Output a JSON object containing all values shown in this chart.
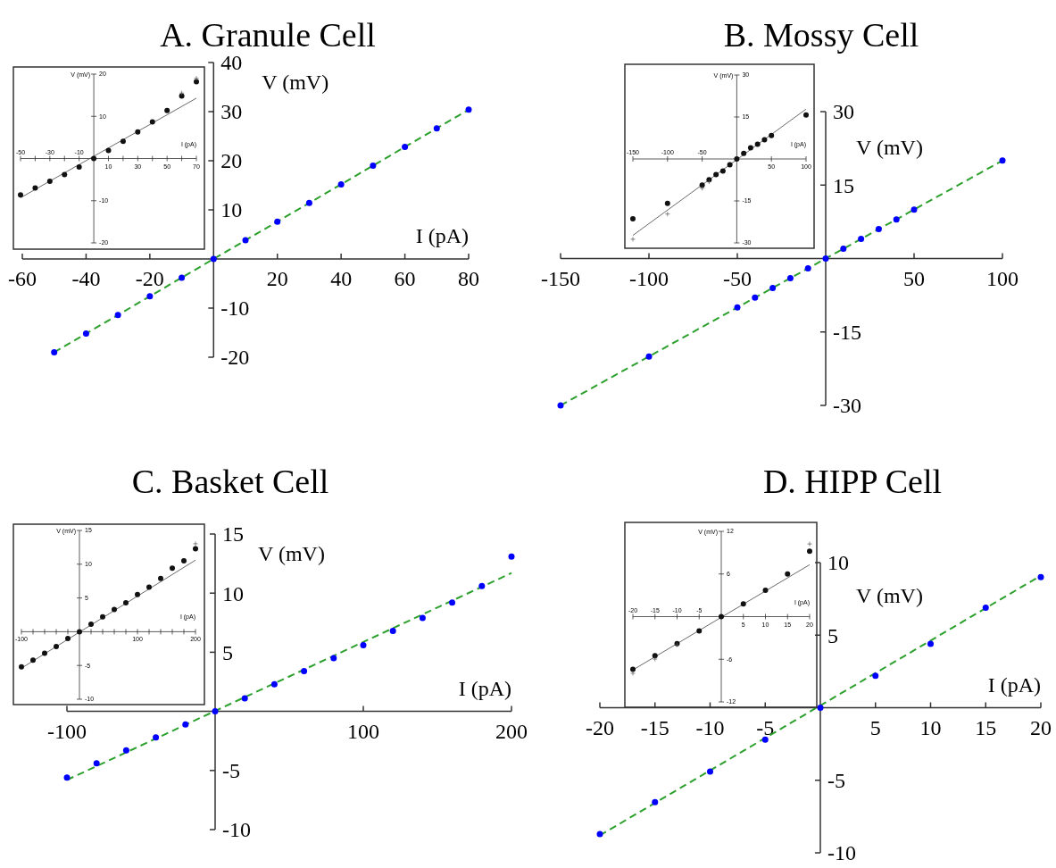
{
  "chart_data": [
    {
      "type": "scatter",
      "title": "A. Granule Cell",
      "xlabel": "I (pA)",
      "ylabel": "V (mV)",
      "xlim": [
        -60,
        80
      ],
      "ylim": [
        -20,
        40
      ],
      "xticks": [
        -60,
        -40,
        -20,
        20,
        40,
        60,
        80
      ],
      "yticks": [
        -20,
        -10,
        10,
        20,
        30,
        40
      ],
      "series": [
        {
          "type": "line",
          "x": [
            -50,
            80
          ],
          "values": [
            -19,
            30.4
          ],
          "color": "#2ca02c",
          "line_style": "dashed"
        },
        {
          "type": "scatter",
          "x": [
            -50,
            -40,
            -30,
            -20,
            -10,
            0,
            10,
            20,
            30,
            40,
            50,
            60,
            70,
            80
          ],
          "values": [
            -19,
            -15.2,
            -11.4,
            -7.6,
            -3.8,
            0,
            3.8,
            7.6,
            11.4,
            15.2,
            19,
            22.8,
            26.6,
            30.4
          ],
          "color": "#0000ff",
          "marker": "circle"
        }
      ]
    },
    {
      "type": "scatter",
      "xlabel": "I (pA)",
      "ylabel": "V (mV)",
      "xlim": [
        -50,
        70
      ],
      "ylim": [
        -20,
        20
      ],
      "x2lim": [
        -50,
        70
      ],
      "x2ticks": [
        -50,
        -30,
        -10
      ],
      "xticks": [
        {
          "value": -50,
          "label": null
        },
        {
          "value": -40,
          "label": null
        },
        {
          "value": -30,
          "label": null
        },
        {
          "value": -20,
          "label": null
        },
        {
          "value": -10,
          "label": null
        },
        10,
        {
          "value": 20,
          "label": null
        },
        30,
        {
          "value": 40,
          "label": null
        },
        50,
        {
          "value": 60,
          "label": null
        },
        70
      ],
      "yticks": [
        -20,
        -10,
        10,
        20
      ],
      "series": [
        {
          "type": "line",
          "x": [
            -50,
            70
          ],
          "values": [
            -9.3,
            14.3
          ],
          "color": "#444444",
          "line_style": "solid"
        },
        {
          "type": "scatter",
          "x": [
            -50,
            -40,
            -30,
            -20,
            -10,
            0,
            10,
            20,
            30,
            40,
            50,
            60,
            70
          ],
          "values": [
            -8.6,
            -7,
            -5.4,
            -3.8,
            -2,
            0,
            1.9,
            4.1,
            6.3,
            8.7,
            11.4,
            14.8,
            18.2
          ],
          "color": "#111111",
          "marker": "circle"
        },
        {
          "type": "scatter",
          "x": [
            60,
            70
          ],
          "values": [
            15.3,
            18.8
          ],
          "color": "#555555",
          "marker": "cross"
        }
      ]
    },
    {
      "type": "scatter",
      "title": "B. Mossy Cell",
      "ylabel": "V (mV)",
      "xlim": [
        -150,
        100
      ],
      "ylim": [
        -30,
        30
      ],
      "xticks": [
        -150,
        -100,
        -50,
        50,
        100
      ],
      "yticks": [
        -30,
        -15,
        15,
        30
      ],
      "series": [
        {
          "type": "line",
          "x": [
            -150,
            100
          ],
          "values": [
            -30,
            20
          ],
          "color": "#2ca02c",
          "line_style": "dashed"
        },
        {
          "type": "scatter",
          "x": [
            -150,
            -100,
            -50,
            -40,
            -30,
            -20,
            -10,
            0,
            10,
            20,
            30,
            40,
            50,
            100
          ],
          "values": [
            -30,
            -20,
            -10,
            -8,
            -6,
            -4,
            -2,
            0,
            2,
            4,
            6,
            8,
            10,
            20
          ],
          "color": "#0000ff",
          "marker": "circle"
        }
      ]
    },
    {
      "type": "scatter",
      "xlabel": "I (pA)",
      "ylabel": "V (mV)",
      "xlim": [
        -150,
        100
      ],
      "ylim": [
        -30,
        30
      ],
      "x2lim": [
        -150,
        100
      ],
      "x2ticks": [
        -150,
        -100,
        -50
      ],
      "xticks": [
        {
          "value": -150,
          "label": null
        },
        {
          "value": -100,
          "label": null
        },
        {
          "value": -50,
          "label": null
        },
        50,
        100
      ],
      "yticks": [
        -30,
        -15,
        15,
        30
      ],
      "series": [
        {
          "type": "line",
          "x": [
            -150,
            100
          ],
          "values": [
            -27.3,
            17.8
          ],
          "color": "#444444",
          "line_style": "solid"
        },
        {
          "type": "scatter",
          "x": [
            -150,
            -100,
            -50,
            -40,
            -30,
            -20,
            -10,
            0,
            10,
            20,
            30,
            40,
            50,
            100
          ],
          "values": [
            -21.4,
            -15.9,
            -9.3,
            -7.4,
            -5.6,
            -4.3,
            -2.1,
            0,
            2,
            4,
            5.3,
            6.9,
            8.4,
            15.7
          ],
          "color": "#111111",
          "marker": "circle"
        },
        {
          "type": "scatter",
          "x": [
            -150,
            -100,
            -50,
            -40
          ],
          "values": [
            -29,
            -20,
            -10.8,
            -8.5
          ],
          "color": "#555555",
          "marker": "cross"
        }
      ]
    },
    {
      "type": "scatter",
      "title": "C. Basket Cell",
      "xlabel": "I (pA)",
      "ylabel": "V (mV)",
      "xlim": [
        -100,
        200
      ],
      "ylim": [
        -10,
        15
      ],
      "xticks": [
        -100,
        100,
        200
      ],
      "yticks": [
        -10,
        -5,
        5,
        10,
        15
      ],
      "series": [
        {
          "type": "line",
          "x": [
            -100,
            200
          ],
          "values": [
            -5.8,
            11.7
          ],
          "color": "#2ca02c",
          "line_style": "dashed"
        },
        {
          "type": "scatter",
          "x": [
            -100,
            -80,
            -60,
            -40,
            -20,
            0,
            20,
            40,
            60,
            80,
            100,
            120,
            140,
            160,
            180,
            200
          ],
          "values": [
            -5.6,
            -4.4,
            -3.3,
            -2.2,
            -1.1,
            0,
            1.1,
            2.3,
            3.4,
            4.5,
            5.6,
            6.8,
            7.9,
            9.2,
            10.6,
            13.1
          ],
          "color": "#0000ff",
          "marker": "circle"
        }
      ]
    },
    {
      "type": "scatter",
      "xlabel": "I (pA)",
      "ylabel": "V (mV)",
      "xlim": [
        -100,
        200
      ],
      "ylim": [
        -10,
        15
      ],
      "xticks": [
        -100,
        {
          "value": -80,
          "label": null
        },
        {
          "value": -60,
          "label": null
        },
        {
          "value": -40,
          "label": null
        },
        {
          "value": -20,
          "label": null
        },
        {
          "value": 20,
          "label": null
        },
        {
          "value": 40,
          "label": null
        },
        {
          "value": 60,
          "label": null
        },
        {
          "value": 80,
          "label": null
        },
        100,
        {
          "value": 120,
          "label": null
        },
        {
          "value": 140,
          "label": null
        },
        {
          "value": 160,
          "label": null
        },
        {
          "value": 180,
          "label": null
        },
        200
      ],
      "yticks": [
        -10,
        -5,
        5,
        10,
        15
      ],
      "series": [
        {
          "type": "line",
          "x": [
            -100,
            200
          ],
          "values": [
            -5.4,
            10.6
          ],
          "color": "#444444",
          "line_style": "solid"
        },
        {
          "type": "scatter",
          "x": [
            200
          ],
          "values": [
            12.9
          ],
          "color": "#555555",
          "marker": "cross"
        },
        {
          "type": "scatter",
          "x": [
            -100,
            -80,
            -60,
            -40,
            -20,
            0,
            20,
            40,
            60,
            80,
            100,
            120,
            140,
            160,
            180,
            200
          ],
          "values": [
            -5.2,
            -4.2,
            -3.2,
            -2.2,
            -1,
            0,
            1.1,
            2.2,
            3.3,
            4.3,
            5.5,
            6.6,
            7.9,
            9.4,
            10.5,
            12.3
          ],
          "color": "#111111",
          "marker": "circle"
        }
      ]
    },
    {
      "type": "scatter",
      "title": "D. HIPP Cell",
      "xlabel": "I (pA)",
      "ylabel": "V (mV)",
      "xlim": [
        -20,
        20
      ],
      "ylim": [
        -10,
        10
      ],
      "xticks": [
        -20,
        -15,
        -10,
        -5,
        5,
        10,
        15,
        20
      ],
      "yticks": [
        -10,
        -5,
        5,
        10
      ],
      "series": [
        {
          "type": "line",
          "x": [
            -20,
            20
          ],
          "values": [
            -8.8,
            9.1
          ],
          "color": "#2ca02c",
          "line_style": "dashed"
        },
        {
          "type": "scatter",
          "x": [
            -20,
            -15,
            -10,
            -5,
            0,
            5,
            10,
            15,
            20
          ],
          "values": [
            -8.7,
            -6.5,
            -4.4,
            -2.2,
            0,
            2.2,
            4.4,
            6.9,
            9
          ],
          "color": "#0000ff",
          "marker": "circle"
        }
      ]
    },
    {
      "type": "scatter",
      "xlabel": "I (pA)",
      "ylabel": "V (mV)",
      "xlim": [
        -20,
        20
      ],
      "ylim": [
        -12,
        12
      ],
      "x2lim": [
        -20,
        20
      ],
      "x2ticks": [
        -20,
        -15,
        -10,
        -5
      ],
      "xticks": [
        {
          "value": -20,
          "label": null
        },
        {
          "value": -15,
          "label": null
        },
        {
          "value": -10,
          "label": null
        },
        {
          "value": -5,
          "label": null
        },
        5,
        10,
        15,
        20
      ],
      "yticks": [
        -12,
        -6,
        6,
        12
      ],
      "series": [
        {
          "type": "line",
          "x": [
            -20,
            20
          ],
          "values": [
            -7.5,
            7.3
          ],
          "color": "#444444",
          "line_style": "solid"
        },
        {
          "type": "scatter",
          "x": [
            -20,
            -15,
            -10,
            -5,
            0,
            5,
            10,
            15,
            20
          ],
          "values": [
            -7.4,
            -5.5,
            -3.8,
            -2,
            0,
            1.8,
            3.7,
            6,
            9.2
          ],
          "color": "#111111",
          "marker": "circle"
        },
        {
          "type": "scatter",
          "x": [
            -20,
            -15,
            -10,
            20
          ],
          "values": [
            -8.1,
            -6.1,
            -4.1,
            10.1
          ],
          "color": "#555555",
          "marker": "cross"
        }
      ]
    }
  ]
}
